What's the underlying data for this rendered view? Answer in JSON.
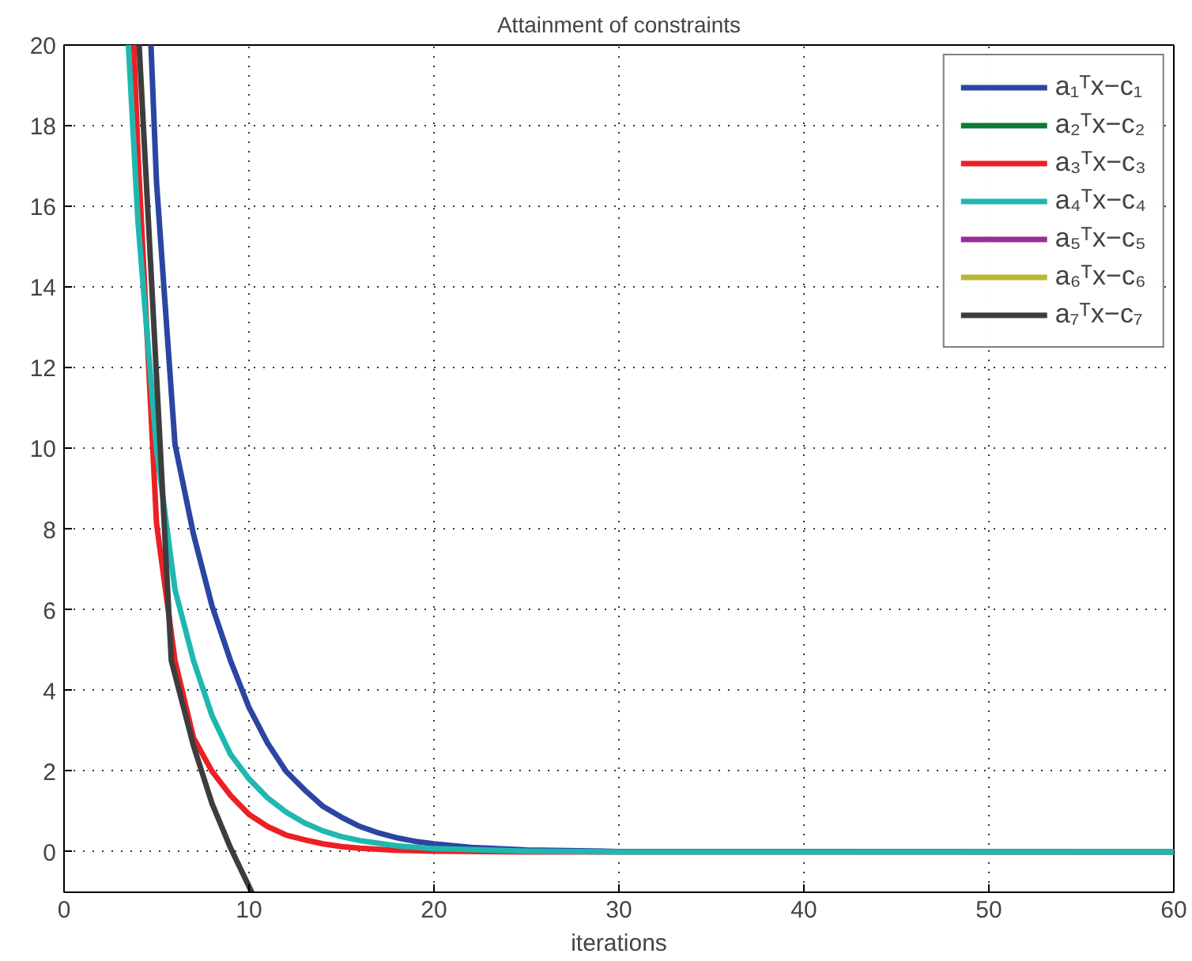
{
  "chart_data": {
    "type": "line",
    "title": "Attainment of constraints",
    "xlabel": "iterations",
    "xlim": [
      0,
      60
    ],
    "ylim": [
      -1,
      20
    ],
    "xticks": [
      0,
      10,
      20,
      30,
      40,
      50,
      60
    ],
    "yticks": [
      0,
      2,
      4,
      6,
      8,
      10,
      12,
      14,
      16,
      18,
      20
    ],
    "grid": true,
    "legend": "top right",
    "line_style": "solid",
    "marker": "none",
    "series": [
      {
        "name": "a₁ᵀx−c₁",
        "color": "#2b45a3",
        "x": [
          4.7,
          5,
          6,
          7,
          8,
          9,
          10,
          11,
          12,
          13,
          14,
          15,
          16,
          17,
          18,
          19,
          20,
          22,
          25,
          30,
          60
        ],
        "values": [
          20,
          16.6,
          10.1,
          7.87,
          6.1,
          4.74,
          3.58,
          2.7,
          2.0,
          1.54,
          1.13,
          0.86,
          0.63,
          0.47,
          0.35,
          0.26,
          0.2,
          0.11,
          0.05,
          0.01,
          0
        ]
      },
      {
        "name": "a₂ᵀx−c₂",
        "color": "#0d7a36"
      },
      {
        "name": "a₃ᵀx−c₃",
        "color": "#ec2024",
        "x": [
          3.77,
          4,
          5,
          6,
          7,
          8,
          9,
          10,
          11,
          12,
          13,
          14,
          15,
          16,
          18,
          20,
          25,
          60
        ],
        "values": [
          20,
          17.3,
          8.15,
          4.74,
          2.83,
          2.0,
          1.4,
          0.93,
          0.63,
          0.42,
          0.3,
          0.2,
          0.13,
          0.09,
          0.04,
          0.02,
          0,
          0
        ]
      },
      {
        "name": "a₄ᵀx−c₄",
        "color": "#1fb8b0",
        "x": [
          3.48,
          4,
          5,
          6,
          7,
          8,
          9,
          10,
          11,
          12,
          13,
          14,
          15,
          16,
          18,
          20,
          25,
          30,
          60
        ],
        "values": [
          20,
          15.6,
          10.0,
          6.5,
          4.74,
          3.38,
          2.42,
          1.81,
          1.34,
          0.99,
          0.72,
          0.52,
          0.38,
          0.28,
          0.15,
          0.08,
          0.02,
          0,
          0
        ]
      },
      {
        "name": "a₅ᵀx−c₅",
        "color": "#9b2d96"
      },
      {
        "name": "a₆ᵀx−c₆",
        "color": "#b8b72f"
      },
      {
        "name": "a₇ᵀx−c₇",
        "color": "#3d3d3d",
        "x": [
          4.06,
          5,
          5.8,
          7,
          8,
          9,
          10.15
        ],
        "values": [
          20,
          11.8,
          4.74,
          2.63,
          1.2,
          0.1,
          -1
        ]
      }
    ]
  }
}
